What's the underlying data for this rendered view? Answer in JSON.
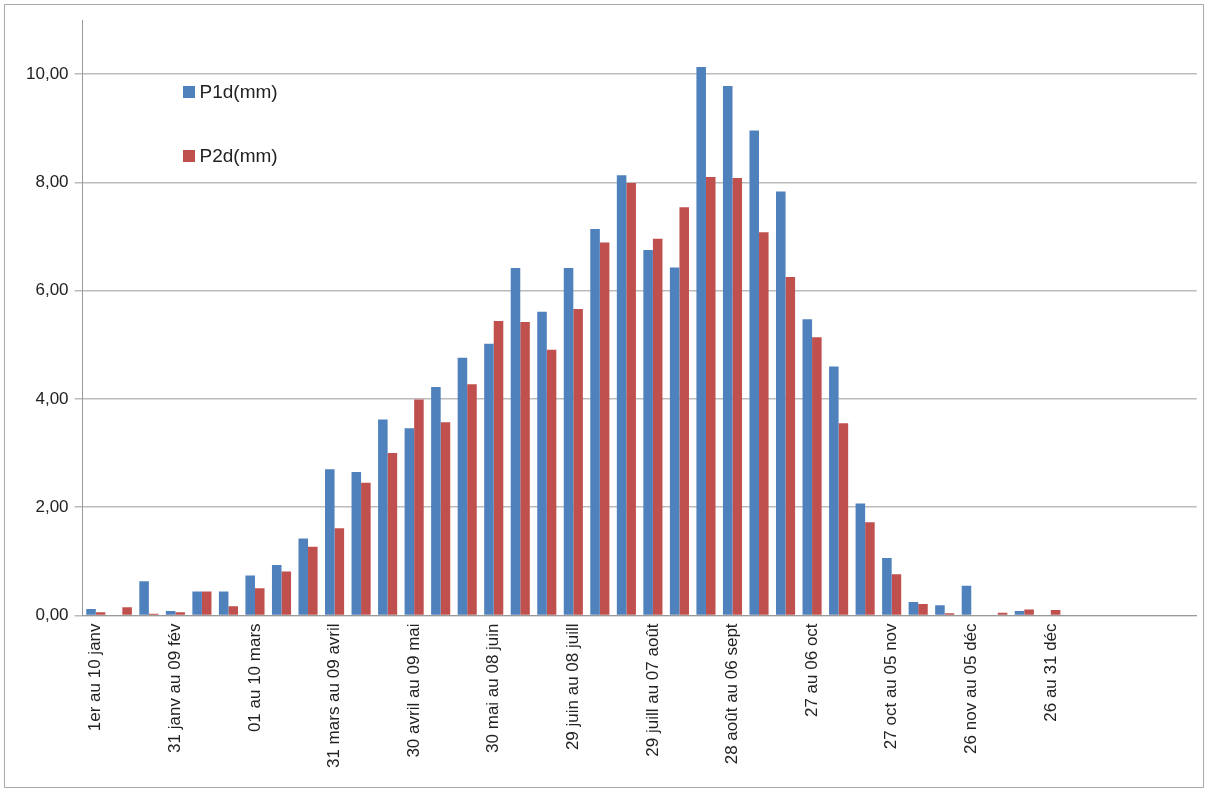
{
  "chart_data": {
    "type": "bar",
    "categories": [
      "1er au 10 janv",
      null,
      null,
      "31 janv au 09 fév",
      null,
      null,
      "01 au 10 mars",
      null,
      null,
      "31 mars au 09 avril",
      null,
      null,
      "30 avril au 09 mai",
      null,
      null,
      "30 mai au 08 juin",
      null,
      null,
      "29 juin au 08 juill",
      null,
      null,
      "29 juill au 07 août",
      null,
      null,
      "28 août au 06 sept",
      null,
      null,
      "27 au 06 oct",
      null,
      null,
      "27 oct au 05 nov",
      null,
      null,
      "26 nov au 05 déc",
      null,
      null,
      "26 au 31 déc",
      null,
      null,
      null,
      null,
      null
    ],
    "series": [
      {
        "name": "P1d(mm)",
        "color": "#4f81bd",
        "values": [
          0.12,
          0,
          0.63,
          0.08,
          0.44,
          0.44,
          0.74,
          0.93,
          1.42,
          2.7,
          2.65,
          3.62,
          3.46,
          4.22,
          4.76,
          5.02,
          6.42,
          5.61,
          6.42,
          7.14,
          8.13,
          6.75,
          6.43,
          10.13,
          9.78,
          8.96,
          7.83,
          5.47,
          4.6,
          2.07,
          1.06,
          0.25,
          0.19,
          0.55,
          0,
          0.08,
          0,
          null,
          null,
          null,
          null,
          null
        ]
      },
      {
        "name": "P2d(mm)",
        "color": "#c0504d",
        "values": [
          0.06,
          0.15,
          0.03,
          0.06,
          0.44,
          0.17,
          0.5,
          0.81,
          1.27,
          1.61,
          2.45,
          3.0,
          3.99,
          3.57,
          4.27,
          5.44,
          5.42,
          4.91,
          5.66,
          6.89,
          7.99,
          6.96,
          7.54,
          8.1,
          8.08,
          7.08,
          6.25,
          5.14,
          3.55,
          1.72,
          0.76,
          0.21,
          0.04,
          0,
          0.05,
          0.11,
          0.1,
          null,
          null,
          null,
          null,
          null
        ]
      }
    ],
    "ylim": [
      0,
      11
    ],
    "yticks": [
      {
        "value": 0,
        "label": "0,00"
      },
      {
        "value": 2,
        "label": "2,00"
      },
      {
        "value": 4,
        "label": "4,00"
      },
      {
        "value": 6,
        "label": "6,00"
      },
      {
        "value": 8,
        "label": "8,00"
      },
      {
        "value": 10,
        "label": "10,00"
      }
    ],
    "grid": "y",
    "legend": "top left"
  }
}
